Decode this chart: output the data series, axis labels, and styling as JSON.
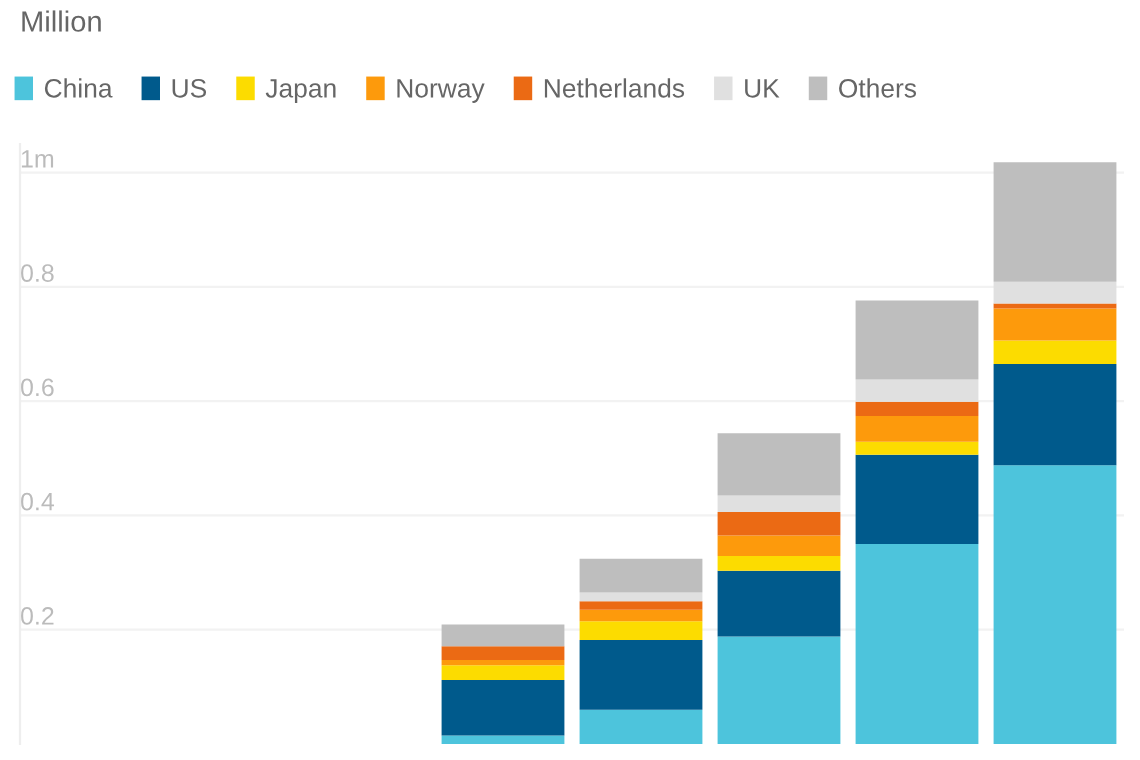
{
  "chart_data": {
    "type": "bar",
    "stacked": true,
    "ylabel": "Million",
    "categories": [
      null,
      null,
      null,
      null,
      null,
      null,
      null,
      null
    ],
    "series": [
      {
        "name": "China",
        "color": "#4dc4dc",
        "values": [
          null,
          null,
          null,
          0.015,
          0.06,
          0.188,
          0.35,
          0.488
        ]
      },
      {
        "name": "US",
        "color": "#005a8c",
        "values": [
          null,
          null,
          null,
          0.097,
          0.122,
          0.115,
          0.156,
          0.177
        ]
      },
      {
        "name": "Japan",
        "color": "#fcdc00",
        "values": [
          null,
          null,
          null,
          0.026,
          0.033,
          0.026,
          0.023,
          0.041
        ]
      },
      {
        "name": "Norway",
        "color": "#fd9a0c",
        "values": [
          null,
          null,
          null,
          0.009,
          0.02,
          0.036,
          0.045,
          0.056
        ]
      },
      {
        "name": "Netherlands",
        "color": "#eb6a14",
        "values": [
          null,
          null,
          null,
          0.024,
          0.015,
          0.041,
          0.025,
          0.009
        ]
      },
      {
        "name": "UK",
        "color": "#e0e0e0",
        "values": [
          null,
          null,
          null,
          null,
          0.015,
          0.029,
          0.039,
          0.038
        ]
      },
      {
        "name": "Others",
        "color": "#bebebe",
        "values": [
          null,
          null,
          null,
          0.038,
          0.059,
          0.109,
          0.138,
          0.209
        ]
      }
    ],
    "ylim": [
      0,
      1.05
    ],
    "yticks": [
      0.2,
      0.4,
      0.6,
      {
        "value": 0.8,
        "label": "0.8"
      },
      {
        "value": 1,
        "label": "1m"
      }
    ],
    "grid": "y",
    "legend": "top left",
    "tick_labels": "y"
  }
}
